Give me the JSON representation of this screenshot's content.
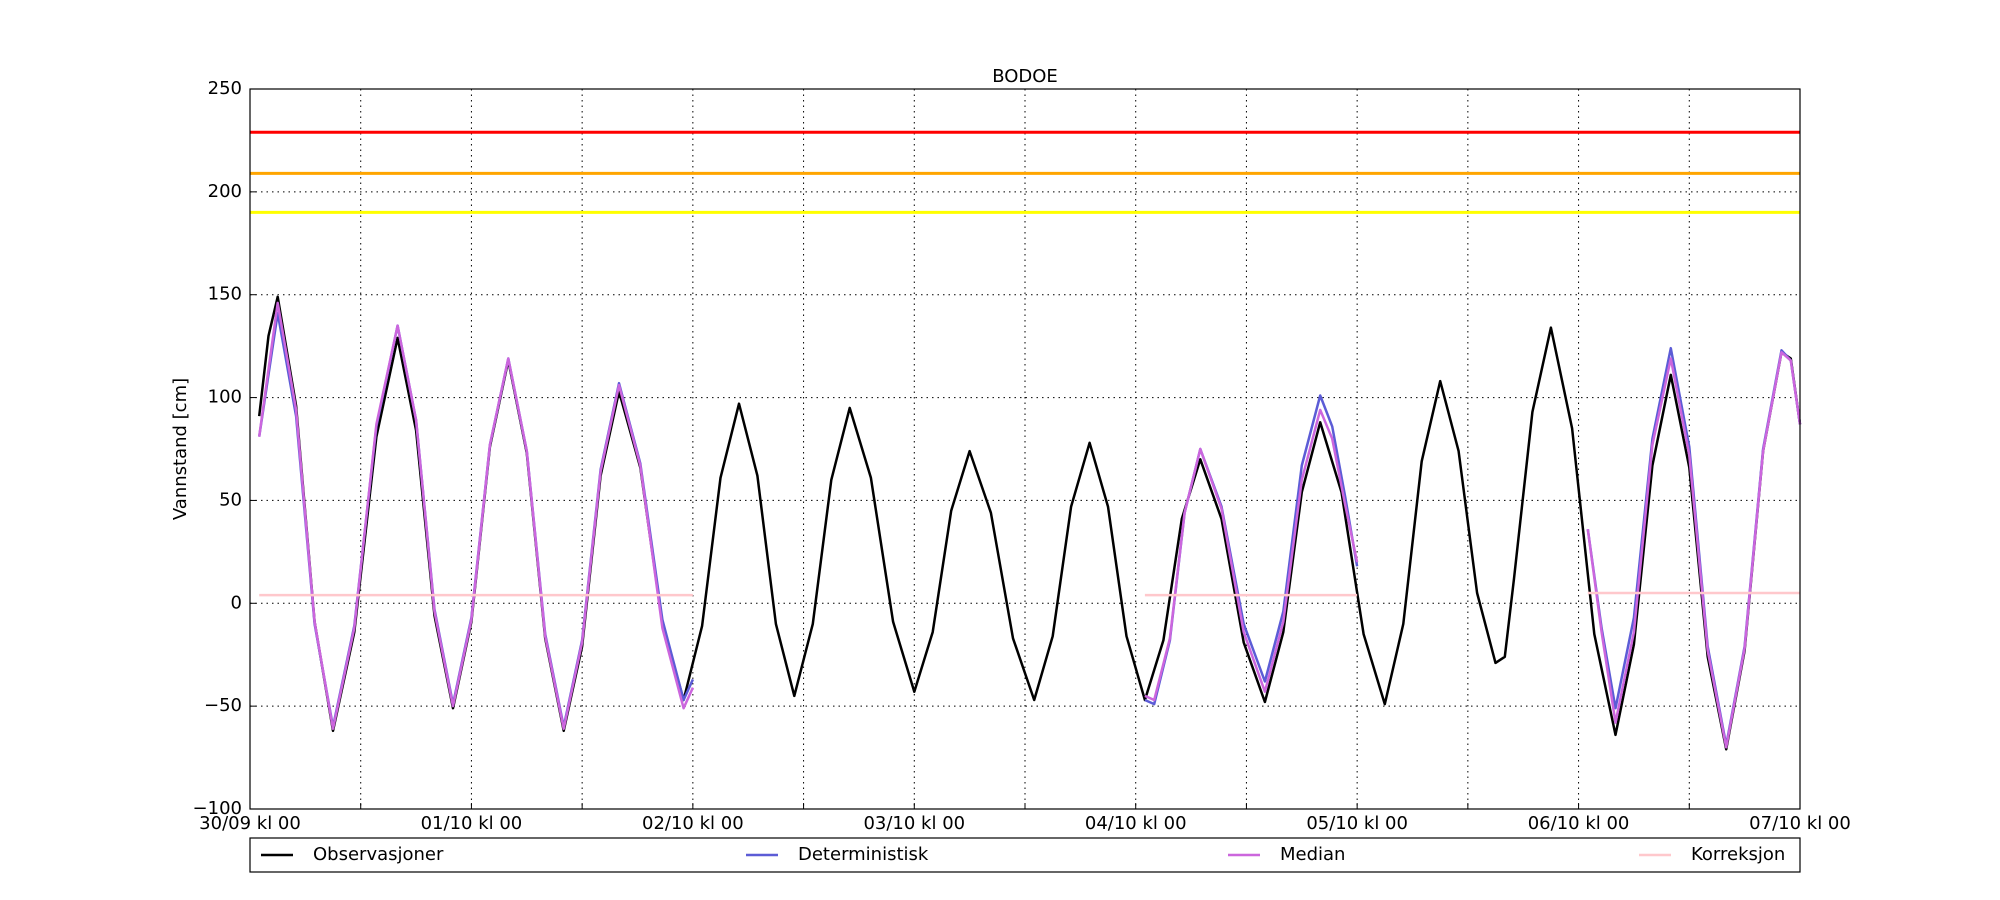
{
  "chart_data": {
    "type": "line",
    "title": "BODOE",
    "y_label": "Vannstand [cm]",
    "xlim": [
      0,
      168
    ],
    "ylim": [
      -100,
      250
    ],
    "xticks": [
      {
        "value": 0,
        "label": "30/09 kl 00"
      },
      {
        "value": 24,
        "label": "01/10 kl 00"
      },
      {
        "value": 48,
        "label": "02/10 kl 00"
      },
      {
        "value": 72,
        "label": "03/10 kl 00"
      },
      {
        "value": 96,
        "label": "04/10 kl 00"
      },
      {
        "value": 120,
        "label": "05/10 kl 00"
      },
      {
        "value": 144,
        "label": "06/10 kl 00"
      },
      {
        "value": 168,
        "label": "07/10 kl 00"
      }
    ],
    "xminorticks": [
      12,
      36,
      60,
      84,
      108,
      132,
      156
    ],
    "yticks": [
      {
        "value": -100,
        "label": "−100"
      },
      {
        "value": -50,
        "label": "−50"
      },
      0,
      50,
      100,
      150,
      200,
      250
    ],
    "grid": true,
    "thresholds": [
      {
        "value": 229,
        "color": "#ff0000"
      },
      {
        "value": 209,
        "color": "#ffa500"
      },
      {
        "value": 190,
        "color": "#ffff00"
      }
    ],
    "series": [
      {
        "name": "Observasjoner",
        "color": "#000000",
        "x": [
          1,
          2,
          3,
          5,
          7,
          9,
          11.3,
          13.7,
          16,
          18,
          20,
          22,
          24,
          26,
          28,
          30,
          32,
          34,
          36,
          38,
          40,
          42.3,
          44.7,
          47,
          49,
          51,
          53,
          55,
          57,
          59,
          61,
          63,
          65,
          67.3,
          69.7,
          72,
          74,
          76,
          78,
          80.3,
          82.7,
          85,
          87,
          89,
          91,
          93,
          95,
          97,
          99,
          101,
          103,
          105.3,
          107.7,
          110,
          112,
          114,
          116,
          118.3,
          120.7,
          123,
          125,
          127,
          129,
          131,
          133,
          135,
          136,
          137,
          139,
          141,
          143.3,
          145.7,
          148,
          150,
          152,
          154,
          156,
          158,
          160,
          162,
          164,
          166,
          167,
          168
        ],
        "values": [
          91,
          130,
          149,
          96,
          -9,
          -62,
          -14,
          81,
          129,
          84,
          -6,
          -51,
          -9,
          76,
          118,
          73,
          -17,
          -62,
          -21,
          62,
          103,
          66,
          -10,
          -47,
          -11,
          61,
          97,
          62,
          -10,
          -45,
          -10,
          60,
          95,
          61,
          -9,
          -43,
          -14,
          45,
          74,
          44,
          -17,
          -47,
          -16,
          47,
          78,
          47,
          -16,
          -47,
          -18,
          41,
          70,
          41,
          -19,
          -48,
          -14,
          54,
          88,
          54,
          -15,
          -49,
          -10,
          69,
          108,
          74,
          5,
          -29,
          -26,
          12,
          93,
          134,
          85,
          -15,
          -64,
          -20,
          67,
          111,
          66,
          -26,
          -71,
          -23,
          74,
          122,
          119,
          87
        ]
      },
      {
        "name": "Deterministisk",
        "color": "#5c5cd6",
        "x": [
          1,
          3,
          5,
          7,
          9,
          11.3,
          13.7,
          16,
          18,
          20,
          22,
          24,
          26,
          28,
          30,
          32,
          34,
          36,
          38,
          40,
          42.3,
          44.7,
          47,
          48,
          72,
          97,
          98,
          99.7,
          101.3,
          103,
          105.3,
          107.7,
          110,
          112,
          114,
          116,
          117.3,
          118.7,
          120,
          132,
          145,
          146.5,
          148,
          150,
          152,
          154,
          156,
          158,
          160,
          162,
          164,
          166,
          167,
          168
        ],
        "values": [
          81,
          141,
          91,
          -10,
          -60,
          -11,
          86,
          135,
          89,
          -3,
          -49,
          -7,
          77,
          119,
          74,
          -15,
          -60,
          -18,
          65,
          107,
          68,
          -8,
          -47,
          -37,
          null,
          -47,
          -49,
          -18,
          44,
          75,
          47,
          -10,
          -38,
          -4,
          67,
          101,
          86,
          52,
          18,
          null,
          36,
          -12,
          -51,
          -7,
          80,
          124,
          76,
          -21,
          -69,
          -21,
          75,
          123,
          118,
          87
        ]
      },
      {
        "name": "Median",
        "color": "#cc66dd",
        "x": [
          1,
          3,
          5,
          7,
          9,
          11.3,
          13.7,
          16,
          18,
          20,
          22,
          24,
          26,
          28,
          30,
          32,
          34,
          36,
          38,
          40,
          42.3,
          44.7,
          47,
          48,
          72,
          97,
          98,
          99.7,
          101.3,
          103,
          105.3,
          107.7,
          110,
          112,
          114,
          116,
          117.3,
          118.7,
          120,
          132,
          145,
          146.5,
          148,
          150,
          152,
          154,
          156,
          158,
          160,
          162,
          164,
          166,
          167,
          168
        ],
        "values": [
          81,
          146,
          94,
          -9,
          -61,
          -12,
          87,
          135,
          89,
          -4,
          -50,
          -8,
          77,
          119,
          74,
          -16,
          -61,
          -19,
          64,
          106,
          67,
          -12,
          -51,
          -41,
          null,
          -45,
          -47,
          -17,
          44,
          75,
          46,
          -14,
          -43,
          -9,
          60,
          94,
          80,
          48,
          20,
          null,
          36,
          -14,
          -58,
          -14,
          77,
          119,
          72,
          -23,
          -70,
          -22,
          74,
          122,
          118,
          87
        ]
      },
      {
        "name": "Korreksjon",
        "color": "#ffc8cc",
        "x": [
          1,
          48,
          72,
          97,
          120,
          132,
          145,
          168
        ],
        "values": [
          4,
          4,
          null,
          4,
          4,
          null,
          5,
          5
        ]
      }
    ]
  }
}
